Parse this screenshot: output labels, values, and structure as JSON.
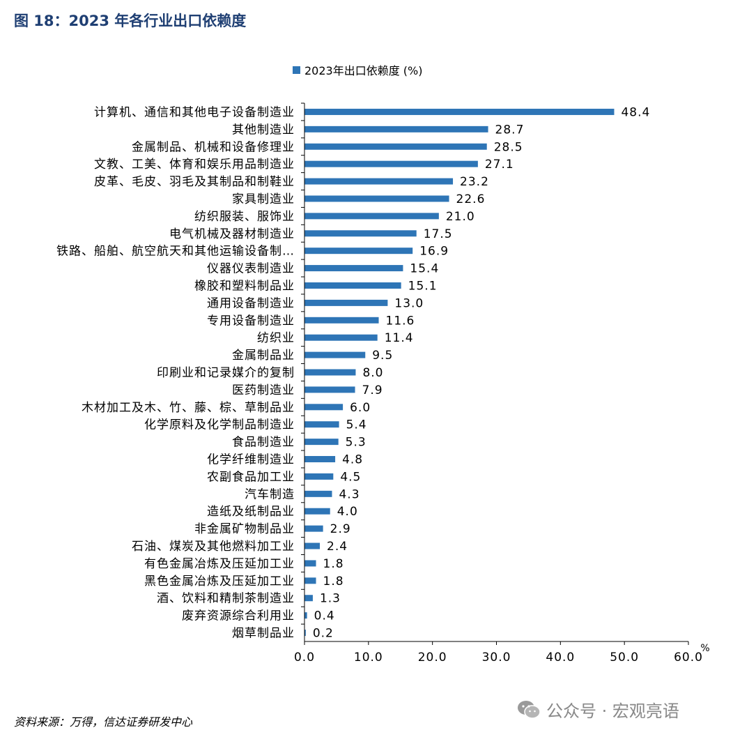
{
  "figure_title": "图 18：2023 年各行业出口依赖度",
  "source_note": "资料来源：万得，信达证券研发中心",
  "watermark": {
    "icon": "wechat-icon",
    "text": "公众号 · 宏观亮语"
  },
  "colors": {
    "bar": "#2e75b6",
    "title": "#1f3f73"
  },
  "chart_data": {
    "type": "bar",
    "orientation": "horizontal",
    "legend_position": "top",
    "grid": false,
    "series": [
      {
        "name": "2023年出口依赖度  (%)",
        "values": [
          48.4,
          28.7,
          28.5,
          27.1,
          23.2,
          22.6,
          21.0,
          17.5,
          16.9,
          15.4,
          15.1,
          13.0,
          11.6,
          11.4,
          9.5,
          8.0,
          7.9,
          6.0,
          5.4,
          5.3,
          4.8,
          4.5,
          4.3,
          4.0,
          2.9,
          2.4,
          1.8,
          1.8,
          1.3,
          0.4,
          0.2
        ]
      }
    ],
    "categories": [
      "计算机、通信和其他电子设备制造业",
      "其他制造业",
      "金属制品、机械和设备修理业",
      "文教、工美、体育和娱乐用品制造业",
      "皮革、毛皮、羽毛及其制品和制鞋业",
      "家具制造业",
      "纺织服装、服饰业",
      "电气机械及器材制造业",
      "铁路、船舶、航空航天和其他运输设备制…",
      "仪器仪表制造业",
      "橡胶和塑料制品业",
      "通用设备制造业",
      "专用设备制造业",
      "纺织业",
      "金属制品业",
      "印刷业和记录媒介的复制",
      "医药制造业",
      "木材加工及木、竹、藤、棕、草制品业",
      "化学原料及化学制品制造业",
      "食品制造业",
      "化学纤维制造业",
      "农副食品加工业",
      "汽车制造",
      "造纸及纸制品业",
      "非金属矿物制品业",
      "石油、煤炭及其他燃料加工业",
      "有色金属冶炼及压延加工业",
      "黑色金属冶炼及压延加工业",
      "酒、饮料和精制茶制造业",
      "废弃资源综合利用业",
      "烟草制品业"
    ],
    "value_labels": [
      "48.4",
      "28.7",
      "28.5",
      "27.1",
      "23.2",
      "22.6",
      "21.0",
      "17.5",
      "16.9",
      "15.4",
      "15.1",
      "13.0",
      "11.6",
      "11.4",
      "9.5",
      "8.0",
      "7.9",
      "6.0",
      "5.4",
      "5.3",
      "4.8",
      "4.5",
      "4.3",
      "4.0",
      "2.9",
      "2.4",
      "1.8",
      "1.8",
      "1.3",
      "0.4",
      "0.2"
    ],
    "xlim": [
      0,
      60
    ],
    "xticks": [
      0,
      10,
      20,
      30,
      40,
      50,
      60
    ],
    "xtick_labels": [
      "0.0",
      "10.0",
      "20.0",
      "30.0",
      "40.0",
      "50.0",
      "60.0"
    ],
    "xunit": "%"
  }
}
